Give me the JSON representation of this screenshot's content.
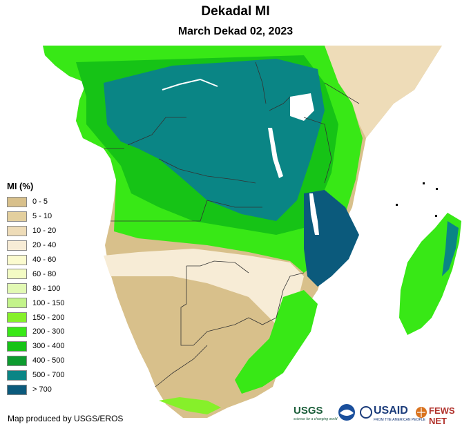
{
  "title": "Dekadal MI",
  "subtitle": "March Dekad 02, 2023",
  "legend": {
    "title": "MI (%)",
    "items": [
      {
        "label": "0 - 5",
        "color": "#d8c08b"
      },
      {
        "label": "5 - 10",
        "color": "#e3cf9e"
      },
      {
        "label": "10 - 20",
        "color": "#eedcb8"
      },
      {
        "label": "20 - 40",
        "color": "#f7ecd6"
      },
      {
        "label": "40 - 60",
        "color": "#fbfbcf"
      },
      {
        "label": "60 - 80",
        "color": "#f3fbc4"
      },
      {
        "label": "80 - 100",
        "color": "#e2f9b4"
      },
      {
        "label": "100 - 150",
        "color": "#c3f38a"
      },
      {
        "label": "150 - 200",
        "color": "#86f02a"
      },
      {
        "label": "200 - 300",
        "color": "#38e816"
      },
      {
        "label": "300 - 400",
        "color": "#16c316"
      },
      {
        "label": "400 - 500",
        "color": "#0d9b2f"
      },
      {
        "label": "500 - 700",
        "color": "#0a8585"
      },
      {
        "label": "> 700",
        "color": "#0b5a7c"
      }
    ]
  },
  "credit": "Map produced by USGS/EROS",
  "logos": [
    {
      "name": "USGS",
      "text": "USGS",
      "tagline": "science for a changing world"
    },
    {
      "name": "NOAA",
      "text": "NOAA"
    },
    {
      "name": "USAID",
      "text": "USAID",
      "tagline": "FROM THE AMERICAN PEOPLE"
    },
    {
      "name": "FEWS NET",
      "text": "FEWS NET"
    }
  ]
}
